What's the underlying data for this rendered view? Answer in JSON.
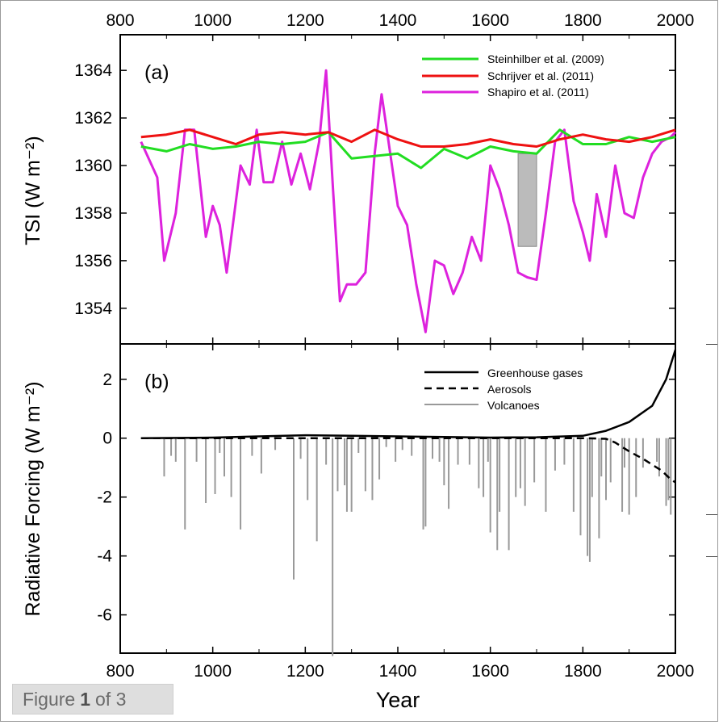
{
  "caption": {
    "prefix": "Figure",
    "number": "1",
    "suffix": "of 3"
  },
  "colors": {
    "steinhilber": "#22dd22",
    "schrijver": "#ee1111",
    "shapiro": "#dd22dd",
    "gray": "#999999",
    "axis": "#000000"
  },
  "chart_data": [
    {
      "type": "line",
      "panel_label": "(a)",
      "ylabel": "TSI  (W m⁻²)",
      "xlim": [
        800,
        2000
      ],
      "ylim": [
        1352.5,
        1365.5
      ],
      "xticks": [
        800,
        1000,
        1200,
        1400,
        1600,
        1800,
        2000
      ],
      "yticks": [
        1354,
        1356,
        1358,
        1360,
        1362,
        1364
      ],
      "legend_position": "top-right",
      "series": [
        {
          "name": "Steinhilber et al. (2009)",
          "color": "#22dd22",
          "x": [
            845,
            900,
            950,
            1000,
            1050,
            1100,
            1150,
            1200,
            1250,
            1300,
            1350,
            1400,
            1450,
            1500,
            1550,
            1600,
            1650,
            1700,
            1750,
            1800,
            1850,
            1900,
            1950,
            2000
          ],
          "y": [
            1360.8,
            1360.6,
            1360.9,
            1360.7,
            1360.8,
            1361.0,
            1360.9,
            1361.0,
            1361.4,
            1360.3,
            1360.4,
            1360.5,
            1359.9,
            1360.7,
            1360.3,
            1360.8,
            1360.6,
            1360.5,
            1361.5,
            1360.9,
            1360.9,
            1361.2,
            1361.0,
            1361.2
          ]
        },
        {
          "name": "Schrijver et al. (2011)",
          "color": "#ee1111",
          "x": [
            845,
            900,
            950,
            1000,
            1050,
            1100,
            1150,
            1200,
            1250,
            1300,
            1350,
            1400,
            1450,
            1500,
            1550,
            1600,
            1650,
            1700,
            1750,
            1800,
            1850,
            1900,
            1950,
            2000
          ],
          "y": [
            1361.2,
            1361.3,
            1361.5,
            1361.2,
            1360.9,
            1361.3,
            1361.4,
            1361.3,
            1361.4,
            1361.0,
            1361.5,
            1361.1,
            1360.8,
            1360.8,
            1360.9,
            1361.1,
            1360.9,
            1360.8,
            1361.1,
            1361.3,
            1361.1,
            1361.0,
            1361.2,
            1361.5
          ]
        },
        {
          "name": "Shapiro et al. (2011)",
          "color": "#dd22dd",
          "x": [
            845,
            880,
            895,
            920,
            940,
            960,
            985,
            1000,
            1015,
            1030,
            1060,
            1080,
            1095,
            1110,
            1130,
            1150,
            1170,
            1190,
            1210,
            1230,
            1245,
            1260,
            1275,
            1290,
            1310,
            1330,
            1350,
            1365,
            1380,
            1400,
            1420,
            1440,
            1460,
            1480,
            1500,
            1520,
            1540,
            1560,
            1580,
            1600,
            1620,
            1640,
            1660,
            1680,
            1700,
            1720,
            1740,
            1760,
            1780,
            1800,
            1815,
            1830,
            1850,
            1870,
            1890,
            1910,
            1930,
            1950,
            1970,
            1990,
            2000
          ],
          "y": [
            1361.0,
            1359.5,
            1356.0,
            1358.0,
            1361.5,
            1361.5,
            1357.0,
            1358.3,
            1357.5,
            1355.5,
            1360.0,
            1359.2,
            1361.5,
            1359.3,
            1359.3,
            1361.0,
            1359.2,
            1360.5,
            1359.0,
            1361.0,
            1364.0,
            1359.0,
            1354.3,
            1355.0,
            1355.0,
            1355.5,
            1360.5,
            1363.0,
            1361.0,
            1358.3,
            1357.5,
            1355.0,
            1353.0,
            1356.0,
            1355.8,
            1354.6,
            1355.5,
            1357.0,
            1356.0,
            1360.0,
            1359.0,
            1357.5,
            1355.5,
            1355.3,
            1355.2,
            1358.0,
            1361.0,
            1361.5,
            1358.5,
            1357.2,
            1356.0,
            1358.8,
            1357.0,
            1360.0,
            1358.0,
            1357.8,
            1359.5,
            1360.5,
            1361.0,
            1361.2,
            1361.4
          ]
        }
      ],
      "shaded_region": {
        "x": [
          1660,
          1700
        ],
        "y": [
          1356.6,
          1360.5
        ]
      }
    },
    {
      "type": "line",
      "panel_label": "(b)",
      "ylabel": "Radiative Forcing  (W m⁻²)",
      "xlabel": "Year",
      "xlim": [
        800,
        2000
      ],
      "ylim": [
        -7.3,
        3.2
      ],
      "xticks": [
        800,
        1000,
        1200,
        1400,
        1600,
        1800,
        2000
      ],
      "yticks": [
        -6,
        -4,
        -2,
        0,
        2
      ],
      "legend_position": "top-right",
      "series": [
        {
          "name": "Greenhouse gases",
          "style": "solid",
          "x": [
            845,
            1000,
            1100,
            1200,
            1300,
            1400,
            1500,
            1600,
            1700,
            1800,
            1850,
            1900,
            1950,
            1980,
            2000
          ],
          "y": [
            0.0,
            0.02,
            0.06,
            0.1,
            0.08,
            0.06,
            0.04,
            0.02,
            0.03,
            0.08,
            0.25,
            0.55,
            1.1,
            2.0,
            3.0
          ]
        },
        {
          "name": "Aerosols",
          "style": "dashed",
          "x": [
            845,
            1800,
            1850,
            1870,
            1900,
            1930,
            1950,
            1970,
            1990,
            2000
          ],
          "y": [
            0.0,
            0.0,
            -0.02,
            -0.15,
            -0.45,
            -0.7,
            -0.9,
            -1.1,
            -1.4,
            -1.5
          ]
        },
        {
          "name": "Volcanoes",
          "style": "bars",
          "x": [
            895,
            910,
            920,
            940,
            965,
            985,
            1005,
            1015,
            1025,
            1040,
            1060,
            1085,
            1105,
            1135,
            1175,
            1190,
            1205,
            1225,
            1245,
            1259,
            1270,
            1285,
            1290,
            1300,
            1315,
            1330,
            1345,
            1360,
            1375,
            1395,
            1410,
            1430,
            1455,
            1460,
            1475,
            1490,
            1500,
            1510,
            1530,
            1555,
            1575,
            1585,
            1595,
            1600,
            1615,
            1620,
            1640,
            1655,
            1665,
            1675,
            1695,
            1720,
            1740,
            1760,
            1780,
            1795,
            1810,
            1815,
            1820,
            1835,
            1840,
            1850,
            1860,
            1885,
            1890,
            1900,
            1915,
            1930,
            1960,
            1965,
            1980,
            1985,
            1990
          ],
          "y": [
            -1.3,
            -0.6,
            -0.8,
            -3.1,
            -0.8,
            -2.2,
            -1.9,
            -0.5,
            -1.3,
            -2.0,
            -3.1,
            -0.6,
            -1.2,
            -0.4,
            -4.8,
            -0.7,
            -2.1,
            -3.5,
            -0.9,
            -7.4,
            -1.8,
            -1.6,
            -2.5,
            -2.5,
            -0.5,
            -1.8,
            -2.1,
            -1.4,
            -0.3,
            -0.8,
            -0.4,
            -0.6,
            -3.1,
            -3.0,
            -0.7,
            -0.8,
            -1.6,
            -2.4,
            -0.9,
            -0.9,
            -1.7,
            -2.0,
            -0.8,
            -3.2,
            -3.8,
            -2.5,
            -3.8,
            -2.0,
            -1.7,
            -2.3,
            -1.5,
            -2.5,
            -1.1,
            -0.9,
            -2.5,
            -3.3,
            -4.0,
            -4.2,
            -2.0,
            -3.4,
            -1.3,
            -2.1,
            -1.5,
            -2.5,
            -1.0,
            -2.6,
            -2.0,
            -1.0,
            -0.8,
            -1.3,
            -2.3,
            -2.1,
            -2.6
          ]
        }
      ]
    }
  ]
}
